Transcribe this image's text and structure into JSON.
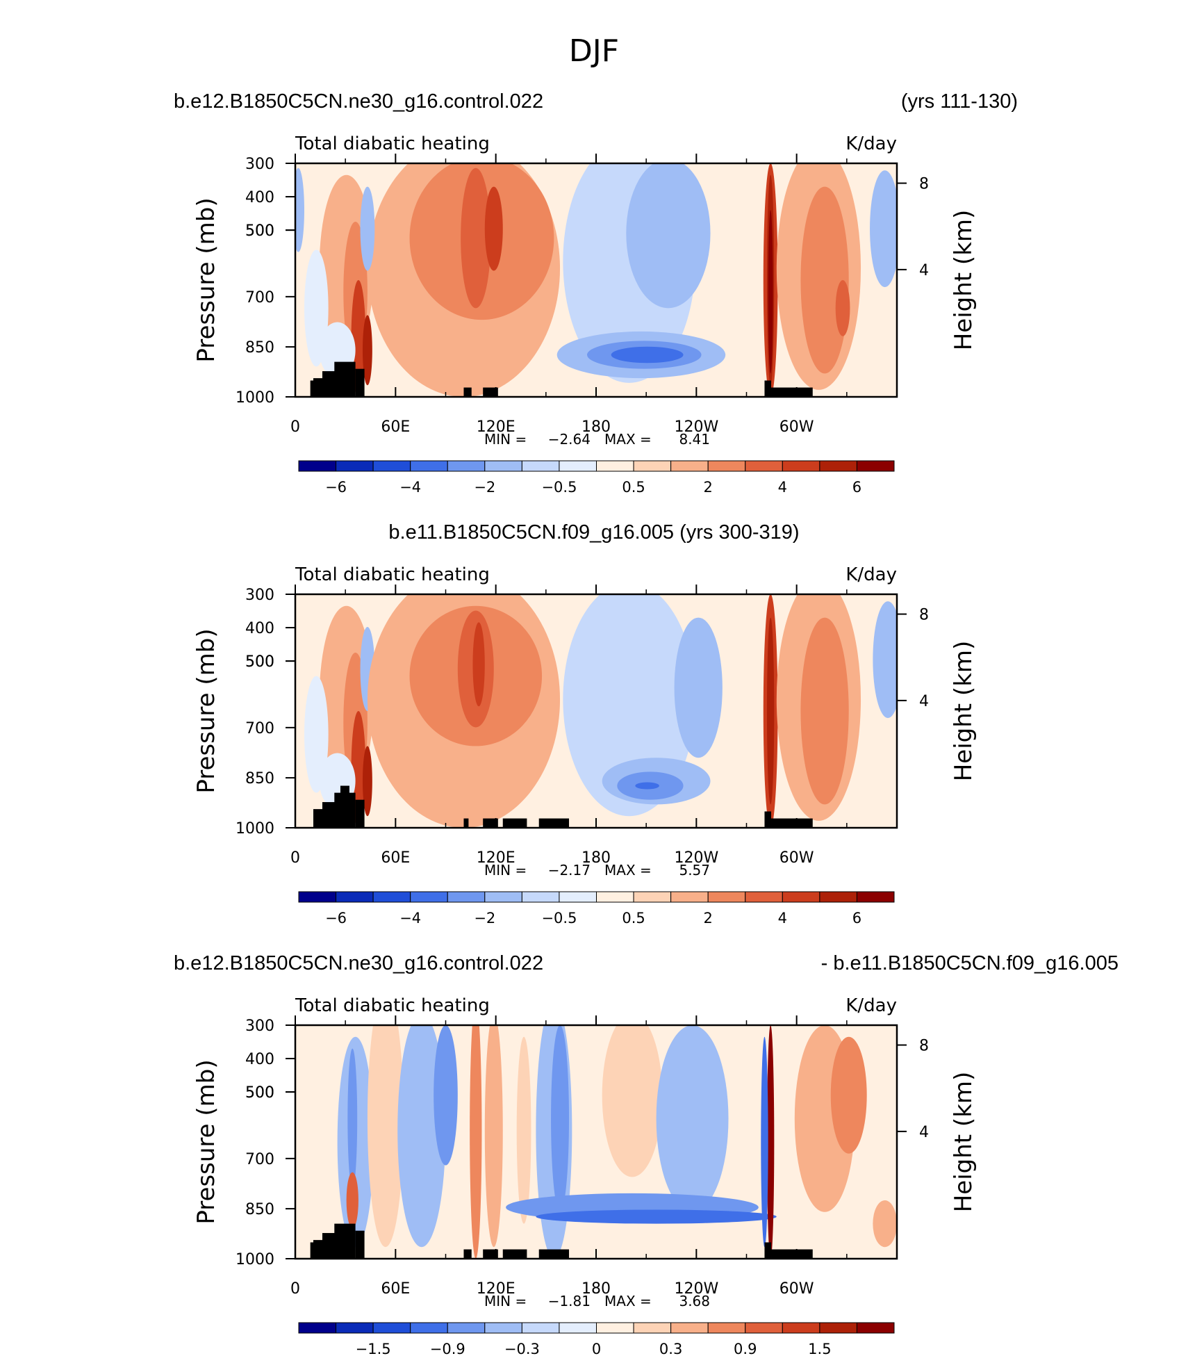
{
  "figure": {
    "title": "DJF"
  },
  "chart_data": [
    {
      "type": "heatmap",
      "title_left": "b.e12.B1850C5CN.ne30_g16.control.022",
      "title_right": "(yrs 111-130)",
      "variable": "Total diabatic heating",
      "units": "K/day",
      "ylabel": "Pressure (mb)",
      "ylabel_right": "Height (km)",
      "x_ticks": [
        "0",
        "60E",
        "120E",
        "180",
        "120W",
        "60W"
      ],
      "x_tick_values": [
        0,
        60,
        120,
        180,
        240,
        300
      ],
      "xlim": [
        0,
        360
      ],
      "y_ticks": [
        "300",
        "400",
        "500",
        "500",
        "700",
        "850",
        "1000"
      ],
      "y_ticks_right": [
        "8",
        "4"
      ],
      "min_label": "MIN =",
      "min_value": "−2.64",
      "max_label": "MAX =",
      "max_value": "8.41",
      "colorbar_labels": [
        "−6",
        "−4",
        "−2",
        "−0.5",
        "0.5",
        "2",
        "4",
        "6"
      ],
      "colors": [
        "#00008b",
        "#0a2bb8",
        "#1f4ed8",
        "#3f6fe8",
        "#6f97ef",
        "#9fbdf5",
        "#c6d9fb",
        "#e4eefd",
        "#fff0e1",
        "#fdd3b6",
        "#f8b08a",
        "#ee875d",
        "#e0603b",
        "#cc3d1d",
        "#ad2108",
        "#8b0000"
      ]
    },
    {
      "type": "heatmap",
      "title_center": "b.e11.B1850C5CN.f09_g16.005 (yrs 300-319)",
      "variable": "Total diabatic heating",
      "units": "K/day",
      "ylabel": "Pressure (mb)",
      "ylabel_right": "Height (km)",
      "x_ticks": [
        "0",
        "60E",
        "120E",
        "180",
        "120W",
        "60W"
      ],
      "x_tick_values": [
        0,
        60,
        120,
        180,
        240,
        300
      ],
      "xlim": [
        0,
        360
      ],
      "y_ticks": [
        "300",
        "400",
        "500",
        "500",
        "700",
        "850",
        "1000"
      ],
      "y_ticks_right": [
        "8",
        "4"
      ],
      "min_label": "MIN =",
      "min_value": "−2.17",
      "max_label": "MAX =",
      "max_value": "5.57",
      "colorbar_labels": [
        "−6",
        "−4",
        "−2",
        "−0.5",
        "0.5",
        "2",
        "4",
        "6"
      ],
      "colors": [
        "#00008b",
        "#0a2bb8",
        "#1f4ed8",
        "#3f6fe8",
        "#6f97ef",
        "#9fbdf5",
        "#c6d9fb",
        "#e4eefd",
        "#fff0e1",
        "#fdd3b6",
        "#f8b08a",
        "#ee875d",
        "#e0603b",
        "#cc3d1d",
        "#ad2108",
        "#8b0000"
      ]
    },
    {
      "type": "heatmap",
      "title_left": "b.e12.B1850C5CN.ne30_g16.control.022",
      "title_right": "- b.e11.B1850C5CN.f09_g16.005",
      "variable": "Total diabatic heating",
      "units": "K/day",
      "ylabel": "Pressure (mb)",
      "ylabel_right": "Height (km)",
      "x_ticks": [
        "0",
        "60E",
        "120E",
        "180",
        "120W",
        "60W"
      ],
      "x_tick_values": [
        0,
        60,
        120,
        180,
        240,
        300
      ],
      "xlim": [
        0,
        360
      ],
      "y_ticks": [
        "300",
        "400",
        "500",
        "500",
        "700",
        "850",
        "1000"
      ],
      "y_ticks_right": [
        "8",
        "4"
      ],
      "min_label": "MIN =",
      "min_value": "−1.81",
      "max_label": "MAX =",
      "max_value": "3.68",
      "colorbar_labels": [
        "−1.5",
        "−0.9",
        "−0.3",
        "0",
        "0.3",
        "0.9",
        "1.5"
      ],
      "colors": [
        "#00008b",
        "#0a2bb8",
        "#1f4ed8",
        "#3f6fe8",
        "#6f97ef",
        "#9fbdf5",
        "#c6d9fb",
        "#e4eefd",
        "#fff0e1",
        "#fdd3b6",
        "#f8b08a",
        "#ee875d",
        "#e0603b",
        "#cc3d1d",
        "#ad2108",
        "#8b0000"
      ]
    }
  ]
}
